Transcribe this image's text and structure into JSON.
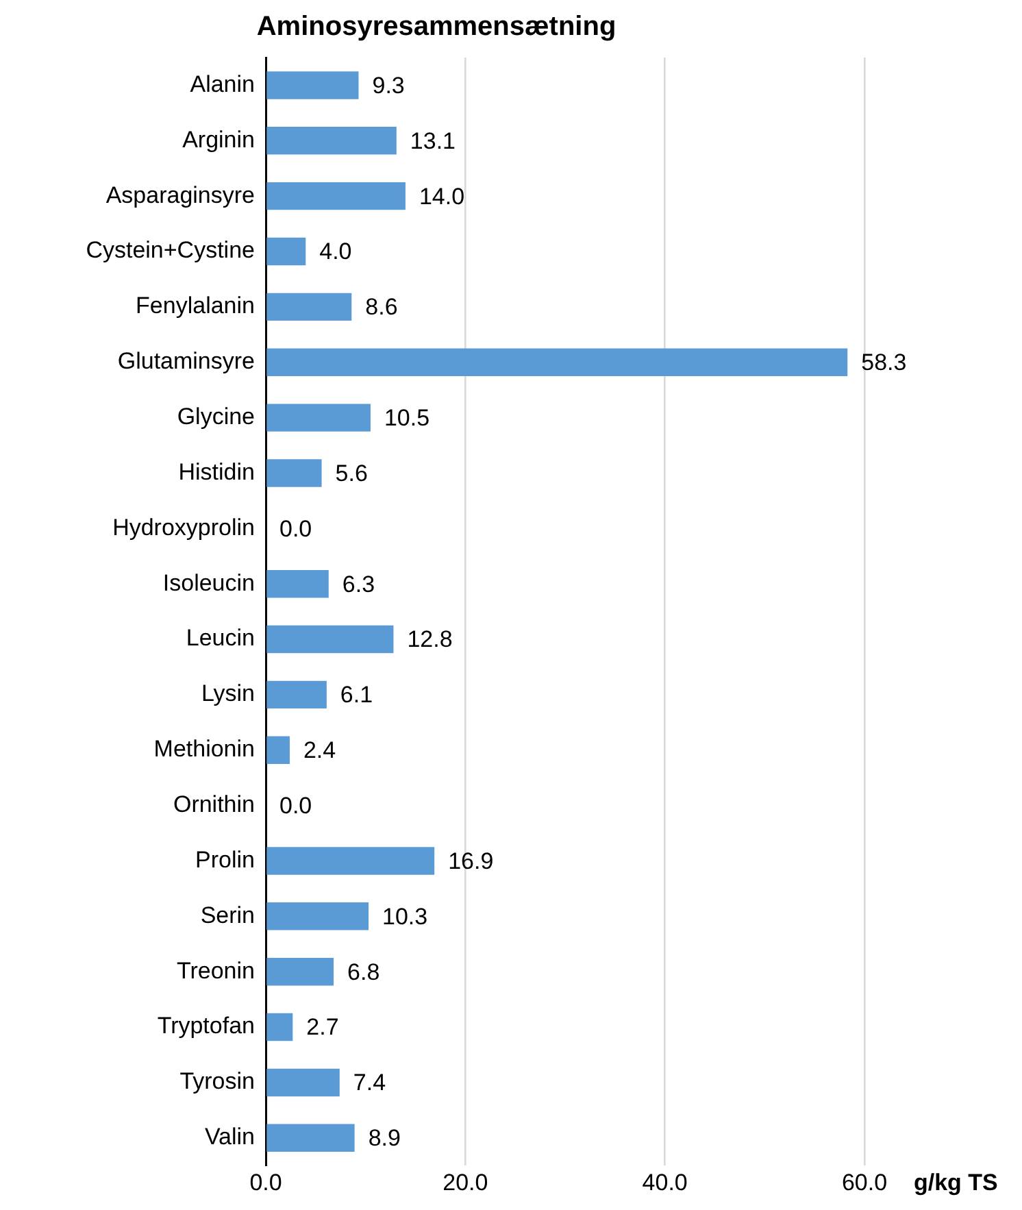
{
  "chart_data": {
    "type": "bar",
    "orientation": "horizontal",
    "title": "Aminosyresammensætning",
    "xlabel": "g/kg TS",
    "categories": [
      "Alanin",
      "Arginin",
      "Asparaginsyre",
      "Cystein+Cystine",
      "Fenylalanin",
      "Glutaminsyre",
      "Glycine",
      "Histidin",
      "Hydroxyprolin",
      "Isoleucin",
      "Leucin",
      "Lysin",
      "Methionin",
      "Ornithin",
      "Prolin",
      "Serin",
      "Treonin",
      "Tryptofan",
      "Tyrosin",
      "Valin"
    ],
    "values": [
      9.3,
      13.1,
      14.0,
      4.0,
      8.6,
      58.3,
      10.5,
      5.6,
      0.0,
      6.3,
      12.8,
      6.1,
      2.4,
      0.0,
      16.9,
      10.3,
      6.8,
      2.7,
      7.4,
      8.9
    ],
    "value_labels": [
      "9.3",
      "13.1",
      "14.0",
      "4.0",
      "8.6",
      "58.3",
      "10.5",
      "5.6",
      "0.0",
      "6.3",
      "12.8",
      "6.1",
      "2.4",
      "0.0",
      "16.9",
      "10.3",
      "6.8",
      "2.7",
      "7.4",
      "8.9"
    ],
    "color": "#5b9bd5",
    "xlim": [
      0,
      60
    ],
    "xticks": [
      {
        "value": 0,
        "label": "0.0"
      },
      {
        "value": 20,
        "label": "20.0"
      },
      {
        "value": 40,
        "label": "40.0"
      },
      {
        "value": 60,
        "label": "60.0"
      }
    ],
    "grid": "x",
    "legend": false
  }
}
